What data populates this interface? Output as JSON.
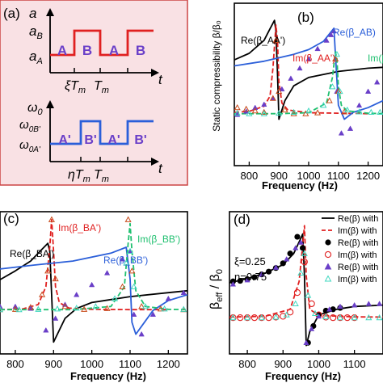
{
  "figure": {
    "panel_a": {
      "label": "(a)",
      "top": {
        "ylabel": "a",
        "level_high": "a_B",
        "level_low": "a_A",
        "seg1": "A",
        "seg2": "B",
        "seg3": "A",
        "seg4": "B",
        "tick1": "ξT_m",
        "tick2": "T_m",
        "xlabel": "t"
      },
      "bottom": {
        "ylabel": "ω_0",
        "level_high": "ω_0B'",
        "level_low": "ω_0A'",
        "seg1": "A'",
        "seg2": "B'",
        "seg3": "A'",
        "seg4": "B'",
        "tick1": "ηT_m",
        "tick2": "T_m",
        "xlabel": "t"
      },
      "colors": {
        "background": "#f9e1e4",
        "border": "#cc4444",
        "top_wave": "#e02020",
        "bottom_wave": "#2b5fd9",
        "letters": "#6a3fc8"
      }
    }
  },
  "chart_data": [
    {
      "panel": "(b)",
      "type": "line",
      "ylabel": "Static compressibility β/β₀",
      "xlabel": "Frequency (Hz)",
      "xlim": [
        750,
        1250
      ],
      "x_ticks": [
        800,
        900,
        1000,
        1100,
        1200
      ],
      "ylim": [
        -1.1,
        2.4
      ],
      "annotations": [
        "Re(β_AA')",
        "Im(β_AA')",
        "Re(β_AB)",
        "Im(β"
      ],
      "series": [
        {
          "name": "Re(β_AA')",
          "color": "#000000",
          "style": "solid",
          "x": [
            750,
            800,
            850,
            870,
            885,
            890,
            895,
            900,
            920,
            950,
            1000,
            1100,
            1200,
            1250
          ],
          "y": [
            1.18,
            1.32,
            1.6,
            1.85,
            2.03,
            1.8,
            0.9,
            -0.1,
            0.3,
            0.62,
            0.8,
            0.93,
            1.0,
            1.02
          ]
        },
        {
          "name": "Im(β_AA')",
          "color": "#e02020",
          "style": "dashed",
          "x": [
            750,
            800,
            850,
            870,
            880,
            890,
            895,
            900,
            910,
            930,
            1000,
            1100,
            1200
          ],
          "y": [
            0.05,
            0.07,
            0.18,
            0.4,
            1.0,
            1.93,
            1.6,
            0.7,
            0.25,
            0.1,
            0.04,
            0.03,
            0.02
          ]
        },
        {
          "name": "Re(β_AB)",
          "color": "#2b5fd9",
          "style": "solid",
          "x": [
            750,
            850,
            950,
            1000,
            1050,
            1075,
            1085,
            1090,
            1100,
            1120,
            1150,
            1200,
            1250
          ],
          "y": [
            1.05,
            1.15,
            1.3,
            1.4,
            1.58,
            1.78,
            1.86,
            1.3,
            0.2,
            -0.1,
            0.05,
            0.15,
            0.3
          ]
        },
        {
          "name": "Im(β_AB)",
          "color": "#20c070",
          "style": "dashed",
          "x": [
            750,
            900,
            1000,
            1060,
            1080,
            1090,
            1095,
            1100,
            1110,
            1130,
            1200,
            1250
          ],
          "y": [
            0.02,
            0.02,
            0.04,
            0.25,
            0.8,
            1.35,
            1.2,
            0.6,
            0.2,
            0.08,
            0.03,
            0.02
          ]
        },
        {
          "name": "Re(β_AB) sim",
          "color": "#6a3fc8",
          "marker": "triangle",
          "x": [
            760,
            790,
            820,
            850,
            880,
            910,
            940,
            970,
            1000,
            1030,
            1060,
            1075,
            1085,
            1095,
            1110,
            1140,
            1170,
            1200,
            1230
          ],
          "y": [
            0.0,
            0.07,
            0.15,
            0.22,
            0.35,
            0.55,
            0.78,
            1.0,
            1.2,
            1.42,
            1.6,
            1.72,
            1.8,
            0.5,
            -0.4,
            -0.3,
            0.2,
            0.5,
            0.7
          ]
        },
        {
          "name": "Im(β_AA') sim",
          "color": "#c84a1a",
          "marker": "open-triangle",
          "x": [
            760,
            790,
            820,
            850,
            880,
            890,
            900,
            920,
            950,
            990,
            1030,
            1070,
            1090,
            1100,
            1120
          ],
          "y": [
            0.15,
            0.12,
            0.08,
            0.05,
            0.35,
            1.6,
            0.5,
            0.1,
            0.02,
            0.02,
            0.04,
            0.3,
            1.2,
            0.5,
            0.06
          ]
        },
        {
          "name": "Im(β_AB) sim",
          "color": "#40d8c0",
          "marker": "open-triangle",
          "x": [
            760,
            800,
            850,
            900,
            950,
            1000,
            1050,
            1080,
            1095,
            1105,
            1130,
            1170,
            1210,
            1240
          ],
          "y": [
            0.03,
            0.02,
            0.02,
            0.03,
            0.05,
            0.08,
            0.2,
            0.6,
            1.3,
            0.5,
            0.1,
            0.06,
            0.05,
            0.05
          ]
        }
      ]
    },
    {
      "panel": "(c)",
      "type": "line",
      "xlabel": "Frequency (Hz)",
      "xlim": [
        760,
        1250
      ],
      "x_ticks": [
        800,
        900,
        1000,
        1100,
        1200
      ],
      "ylim": [
        -1.1,
        2.5
      ],
      "annotations": [
        "Re(β_BA')",
        "Im(β_BA')",
        "Re(β_BB')",
        "Im(β_BB')"
      ],
      "series": [
        {
          "name": "Re(β_BA')",
          "color": "#000000",
          "style": "solid",
          "x": [
            760,
            800,
            840,
            870,
            885,
            890,
            895,
            900,
            910,
            930,
            960,
            1000,
            1100,
            1200,
            1250
          ],
          "y": [
            0.78,
            1.0,
            1.25,
            1.55,
            1.7,
            1.5,
            0.4,
            -0.8,
            -0.6,
            -0.2,
            0.05,
            0.2,
            0.35,
            0.45,
            0.5
          ]
        },
        {
          "name": "Im(β_BA')",
          "color": "#e02020",
          "style": "dashed",
          "x": [
            760,
            820,
            860,
            880,
            890,
            895,
            900,
            905,
            915,
            940,
            1000,
            1100,
            1200
          ],
          "y": [
            0.02,
            0.04,
            0.15,
            0.6,
            1.6,
            2.3,
            1.5,
            0.6,
            0.2,
            0.06,
            0.03,
            0.02,
            0.02
          ]
        },
        {
          "name": "Re(β_BB')",
          "color": "#2b5fd9",
          "style": "solid",
          "x": [
            760,
            850,
            950,
            1050,
            1090,
            1100,
            1105,
            1115,
            1130,
            1160,
            1200,
            1250
          ],
          "y": [
            1.05,
            1.15,
            1.25,
            1.45,
            1.6,
            0.8,
            -0.3,
            -0.6,
            -0.4,
            0.0,
            0.25,
            0.4
          ]
        },
        {
          "name": "Im(β_BB')",
          "color": "#20c070",
          "style": "dashed",
          "x": [
            760,
            950,
            1050,
            1085,
            1095,
            1100,
            1105,
            1115,
            1140,
            1200,
            1250
          ],
          "y": [
            0.02,
            0.02,
            0.1,
            0.6,
            1.7,
            2.2,
            1.5,
            0.5,
            0.1,
            0.03,
            0.02
          ]
        },
        {
          "name": "Re(β_BB') sim",
          "color": "#6a3fc8",
          "marker": "triangle",
          "x": [
            760,
            800,
            840,
            880,
            905,
            930,
            960,
            1000,
            1040,
            1080,
            1100,
            1110,
            1130,
            1160,
            1200,
            1240
          ],
          "y": [
            0.1,
            0.1,
            0.05,
            -0.5,
            -0.2,
            0.15,
            0.4,
            0.65,
            0.95,
            1.3,
            1.5,
            -0.1,
            -0.6,
            -0.1,
            0.3,
            0.45
          ]
        },
        {
          "name": "Im(β_BA') sim",
          "color": "#c84a1a",
          "marker": "open-triangle",
          "x": [
            760,
            800,
            840,
            870,
            885,
            895,
            905,
            930,
            980,
            1040,
            1080,
            1095,
            1105,
            1130,
            1180,
            1240
          ],
          "y": [
            0.02,
            0.03,
            0.08,
            0.4,
            1.0,
            2.3,
            0.8,
            0.1,
            0.03,
            0.05,
            0.6,
            2.3,
            1.0,
            0.1,
            0.04,
            0.02
          ]
        },
        {
          "name": "Im(β_BB') sim",
          "color": "#40d8c0",
          "marker": "open-triangle",
          "x": [
            760,
            810,
            860,
            910,
            960,
            1010,
            1060,
            1090,
            1100,
            1110,
            1140,
            1190,
            1240
          ],
          "y": [
            0.02,
            0.02,
            0.03,
            0.04,
            0.06,
            0.1,
            0.3,
            1.2,
            1.5,
            0.6,
            0.1,
            0.04,
            0.03
          ]
        }
      ]
    },
    {
      "panel": "(d)",
      "type": "line",
      "ylabel": "β_eff / β_0",
      "xlabel": "Frequency (Hz)",
      "xlim": [
        750,
        1180
      ],
      "x_ticks": [
        800,
        900,
        1000,
        1100
      ],
      "ylim": [
        -1.3,
        3.8
      ],
      "annotations": [
        "ξ=0.25",
        "η=0.75"
      ],
      "legend_position": "right",
      "legend": [
        "Re(β) with",
        "Im(β) with",
        "Re(β) with",
        "Im(β) with",
        "Re(β) with",
        "Im(β) with"
      ],
      "series": [
        {
          "name": "Re(β) with",
          "color": "#000000",
          "style": "solid",
          "x": [
            750,
            800,
            850,
            900,
            930,
            950,
            955,
            960,
            965,
            975,
            1000,
            1050,
            1100,
            1180
          ],
          "y": [
            1.25,
            1.4,
            1.6,
            1.9,
            2.3,
            2.85,
            3.0,
            1.5,
            -1.0,
            -0.5,
            0.1,
            0.3,
            0.4,
            0.45
          ]
        },
        {
          "name": "Im(β) with",
          "color": "#e02020",
          "style": "dashed",
          "x": [
            750,
            850,
            920,
            945,
            955,
            960,
            965,
            975,
            1000,
            1100,
            1180
          ],
          "y": [
            0.02,
            0.05,
            0.3,
            1.3,
            2.6,
            3.3,
            1.5,
            0.3,
            0.08,
            0.03,
            0.02
          ]
        },
        {
          "name": "Re(β) with",
          "color": "#000000",
          "marker": "filled-circle",
          "x": [
            760,
            780,
            800,
            820,
            840,
            860,
            880,
            900,
            920,
            940,
            955,
            970,
            985,
            1000,
            1020,
            1040,
            1060
          ],
          "y": [
            1.3,
            1.32,
            1.38,
            1.45,
            1.55,
            1.65,
            1.78,
            1.95,
            2.3,
            2.9,
            2.5,
            -0.9,
            -0.3,
            0.1,
            0.25,
            0.3,
            0.35
          ]
        },
        {
          "name": "Im(β) with",
          "color": "#e02020",
          "marker": "open-circle",
          "x": [
            760,
            780,
            800,
            820,
            840,
            860,
            880,
            900,
            920,
            940,
            960,
            980,
            1000,
            1020,
            1040,
            1060,
            1080,
            1100
          ],
          "y": [
            0.0,
            0.0,
            0.0,
            0.0,
            0.0,
            0.0,
            0.02,
            0.05,
            0.2,
            0.9,
            2.0,
            0.5,
            0.1,
            0.02,
            0.0,
            0.0,
            0.0,
            0.0
          ]
        },
        {
          "name": "Re(β) with",
          "color": "#6a3fc8",
          "marker": "triangle",
          "x": [
            760,
            800,
            840,
            880,
            910,
            935,
            950,
            965,
            980,
            1000,
            1030,
            1060,
            1100,
            1140,
            1170
          ],
          "y": [
            1.2,
            1.35,
            1.55,
            1.8,
            2.1,
            2.5,
            2.7,
            -0.9,
            -0.4,
            0.05,
            0.3,
            0.4,
            0.45,
            0.5,
            0.5
          ]
        },
        {
          "name": "Im(β) with",
          "color": "#40d8c0",
          "marker": "open-triangle",
          "x": [
            760,
            800,
            840,
            880,
            910,
            935,
            950,
            960,
            970,
            990,
            1020,
            1060,
            1100,
            1140,
            1170
          ],
          "y": [
            0.0,
            0.0,
            0.0,
            0.02,
            0.1,
            0.5,
            1.6,
            2.3,
            0.8,
            0.15,
            0.03,
            0.0,
            0.0,
            0.0,
            0.0
          ]
        }
      ]
    }
  ]
}
